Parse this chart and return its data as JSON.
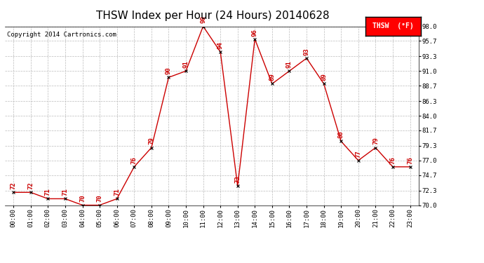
{
  "title": "THSW Index per Hour (24 Hours) 20140628",
  "copyright": "Copyright 2014 Cartronics.com",
  "legend_label": "THSW  (°F)",
  "hours": [
    "00:00",
    "01:00",
    "02:00",
    "03:00",
    "04:00",
    "05:00",
    "06:00",
    "07:00",
    "08:00",
    "09:00",
    "10:00",
    "11:00",
    "12:00",
    "13:00",
    "14:00",
    "15:00",
    "16:00",
    "17:00",
    "18:00",
    "19:00",
    "20:00",
    "21:00",
    "22:00",
    "23:00"
  ],
  "values": [
    72,
    72,
    71,
    71,
    70,
    70,
    71,
    76,
    79,
    90,
    91,
    98,
    94,
    73,
    96,
    89,
    91,
    93,
    89,
    80,
    77,
    79,
    76,
    76
  ],
  "ylim": [
    70.0,
    98.0
  ],
  "yticks": [
    70.0,
    72.3,
    74.7,
    77.0,
    79.3,
    81.7,
    84.0,
    86.3,
    88.7,
    91.0,
    93.3,
    95.7,
    98.0
  ],
  "line_color": "#cc0000",
  "marker_color": "#000000",
  "bg_color": "#ffffff",
  "grid_color": "#bbbbbb",
  "title_fontsize": 11,
  "label_fontsize": 6.5,
  "annotation_fontsize": 6.5,
  "copyright_fontsize": 6.5,
  "legend_fontsize": 7
}
